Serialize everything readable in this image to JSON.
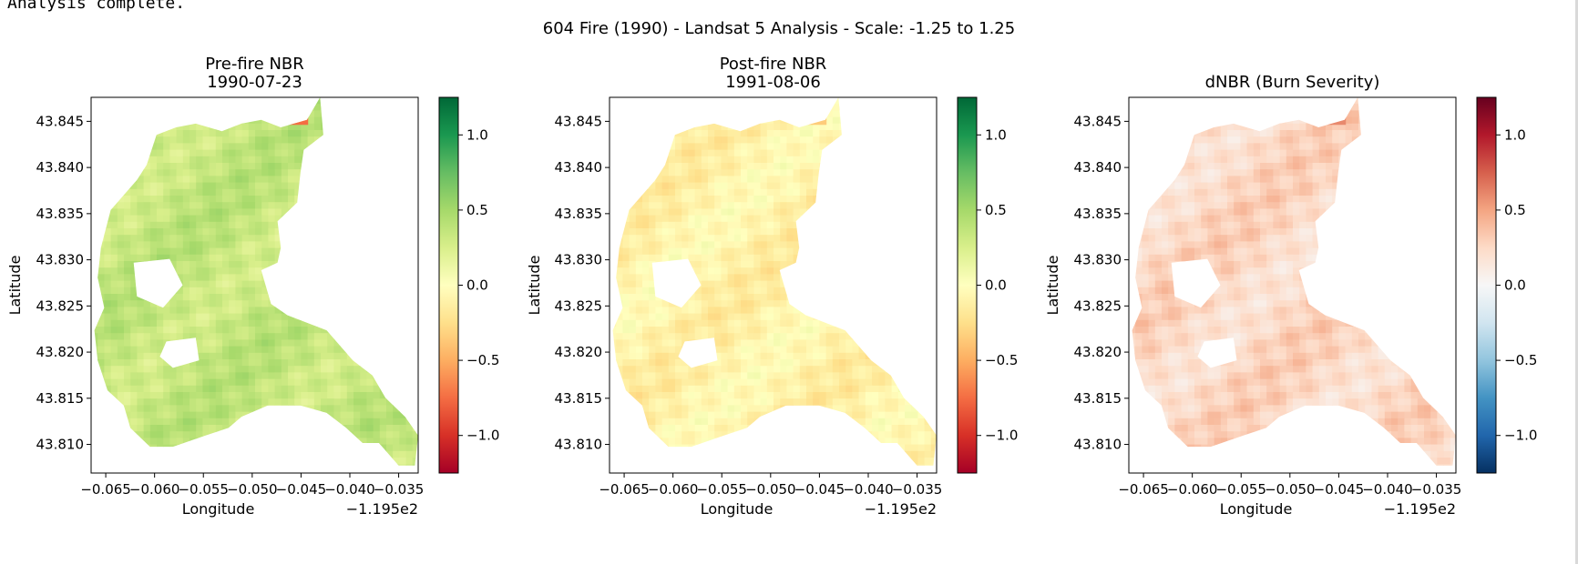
{
  "console": {
    "output_text": "Analysis complete."
  },
  "figure": {
    "suptitle": "604 Fire (1990) - Landsat 5 Analysis - Scale: -1.25 to 1.25"
  },
  "chart_data": [
    {
      "type": "heatmap",
      "title_line1": "Pre-fire NBR",
      "title_line2": "1990-07-23",
      "xlabel": "Longitude",
      "ylabel": "Latitude",
      "x_offset_label": "−1.195e2",
      "xticks": [
        "−0.065",
        "−0.060",
        "−0.055",
        "−0.050",
        "−0.045",
        "−0.040",
        "−0.035"
      ],
      "yticks": [
        "43.845",
        "43.840",
        "43.835",
        "43.830",
        "43.825",
        "43.820",
        "43.815",
        "43.810"
      ],
      "xlim": [
        -0.0665,
        -0.033
      ],
      "ylim": [
        43.8069,
        43.8476
      ],
      "colormap": "RdYlGn",
      "clim": [
        -1.25,
        1.25
      ],
      "colorbar_ticks": [
        "1.0",
        "0.5",
        "0.0",
        "−0.5",
        "−1.0"
      ],
      "colorbar_tick_values": [
        1.0,
        0.5,
        0.0,
        -0.5,
        -1.0
      ],
      "typical_value": 0.35,
      "hotspot_value": -0.75
    },
    {
      "type": "heatmap",
      "title_line1": "Post-fire NBR",
      "title_line2": "1991-08-06",
      "xlabel": "Longitude",
      "ylabel": "Latitude",
      "x_offset_label": "−1.195e2",
      "xticks": [
        "−0.065",
        "−0.060",
        "−0.055",
        "−0.050",
        "−0.045",
        "−0.040",
        "−0.035"
      ],
      "yticks": [
        "43.845",
        "43.840",
        "43.835",
        "43.830",
        "43.825",
        "43.820",
        "43.815",
        "43.810"
      ],
      "xlim": [
        -0.0665,
        -0.033
      ],
      "ylim": [
        43.8069,
        43.8476
      ],
      "colormap": "RdYlGn",
      "clim": [
        -1.25,
        1.25
      ],
      "colorbar_ticks": [
        "1.0",
        "0.5",
        "0.0",
        "−0.5",
        "−1.0"
      ],
      "colorbar_tick_values": [
        1.0,
        0.5,
        0.0,
        -0.5,
        -1.0
      ],
      "typical_value": -0.1,
      "hotspot_value": -0.35
    },
    {
      "type": "heatmap",
      "title_line1": "dNBR (Burn Severity)",
      "title_line2": "",
      "xlabel": "Longitude",
      "ylabel": "Latitude",
      "x_offset_label": "−1.195e2",
      "xticks": [
        "−0.065",
        "−0.060",
        "−0.055",
        "−0.050",
        "−0.045",
        "−0.040",
        "−0.035"
      ],
      "yticks": [
        "43.845",
        "43.840",
        "43.835",
        "43.830",
        "43.825",
        "43.820",
        "43.815",
        "43.810"
      ],
      "xlim": [
        -0.0665,
        -0.033
      ],
      "ylim": [
        43.8069,
        43.8476
      ],
      "colormap": "RdBu_r",
      "clim": [
        -1.25,
        1.25
      ],
      "colorbar_ticks": [
        "1.0",
        "0.5",
        "0.0",
        "−0.5",
        "−1.0"
      ],
      "colorbar_tick_values": [
        1.0,
        0.5,
        0.0,
        -0.5,
        -1.0
      ],
      "typical_value": 0.25,
      "hotspot_value": 0.6
    }
  ]
}
